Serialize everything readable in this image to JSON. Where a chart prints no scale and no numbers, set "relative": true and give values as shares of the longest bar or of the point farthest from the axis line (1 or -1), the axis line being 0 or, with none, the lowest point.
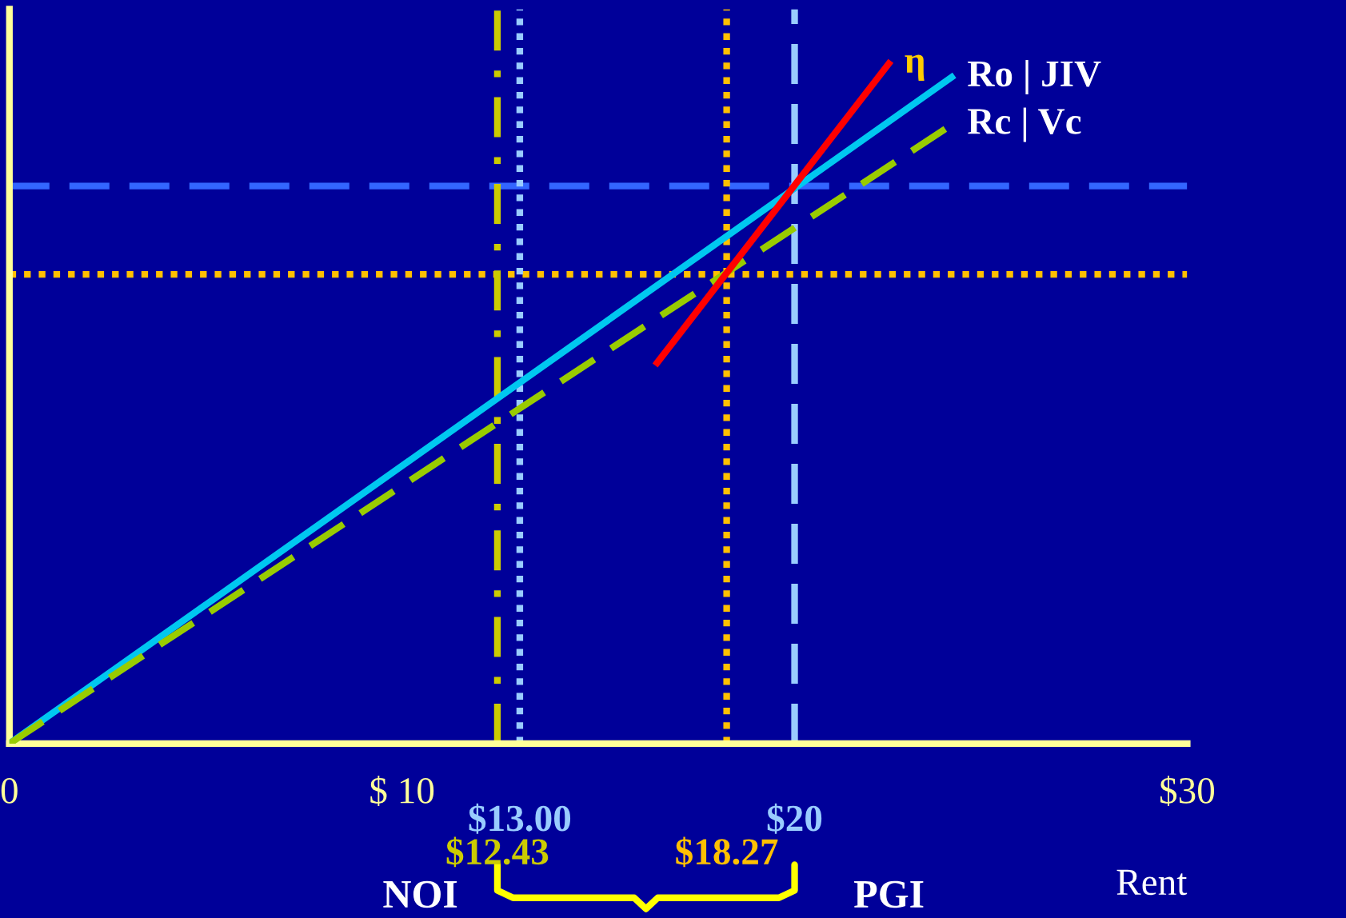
{
  "chart_data": {
    "type": "line",
    "relative": true,
    "xlabel": "Rent",
    "xlim": [
      0,
      30
    ],
    "xticks": [
      0,
      {
        "value": 10,
        "label": "$ 10"
      },
      {
        "value": 30,
        "label": "$30"
      }
    ],
    "series": [
      {
        "name": "Ro | JIV",
        "color": "#00c8f0",
        "line_style": "solid",
        "x": [
          0,
          24
        ],
        "values": [
          0,
          0.98
        ]
      },
      {
        "name": "Rc | Vc",
        "color": "#99cc00",
        "line_style": "dashed",
        "x": [
          0,
          24
        ],
        "values": [
          0,
          0.91
        ]
      },
      {
        "name": "η",
        "color": "#ff0000",
        "line_style": "solid",
        "x": [
          16.5,
          22.4
        ],
        "values": [
          0.56,
          1.0
        ]
      }
    ],
    "ref_lines": [
      {
        "axis": "y",
        "value": 0.82,
        "label": null,
        "color": "#3366ff",
        "line_style": "dashed"
      },
      {
        "axis": "y",
        "value": 0.69,
        "label": null,
        "color": "#ffc000",
        "line_style": "dotted"
      },
      {
        "axis": "x",
        "value": 12.43,
        "label": "$12.43",
        "color": "#cccc00",
        "line_style": "dashdot"
      },
      {
        "axis": "x",
        "value": 13.0,
        "label": "$13.00",
        "color": "#99ccff",
        "line_style": "dotted"
      },
      {
        "axis": "x",
        "value": 18.27,
        "label": "$18.27",
        "color": "#ffc000",
        "line_style": "dotted"
      },
      {
        "axis": "x",
        "value": 20,
        "label": "$20",
        "color": "#99ccff",
        "line_style": "dashed"
      }
    ],
    "annotations": [
      "NOI",
      "PGI"
    ]
  }
}
